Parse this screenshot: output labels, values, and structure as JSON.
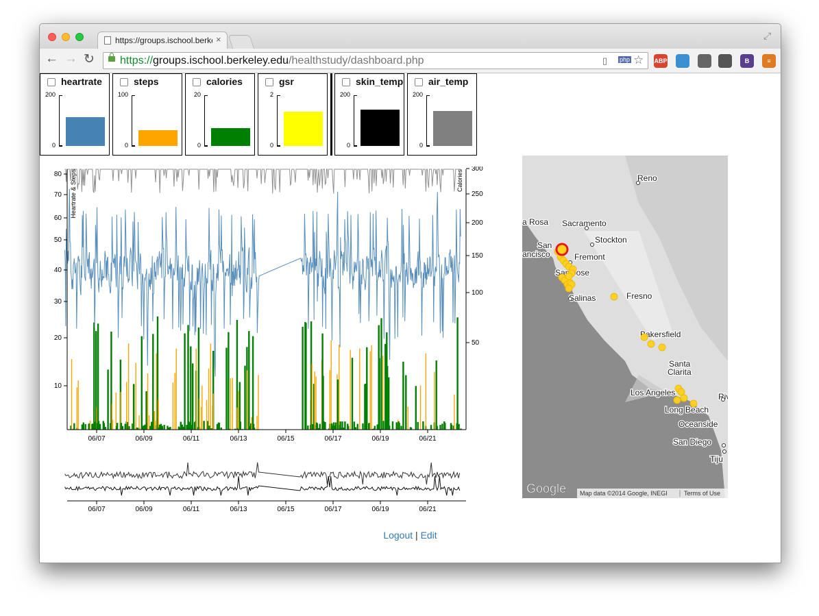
{
  "browser": {
    "tab_title": "https://groups.ischool.berkeley.edu",
    "tab_close": "×",
    "url": {
      "scheme": "https://",
      "host": "groups.ischool.berkeley.edu",
      "path": "/healthstudy/dashboard.php"
    },
    "nav": {
      "back": "←",
      "forward": "→",
      "reload": "↻"
    },
    "extensions": [
      {
        "label": "ABP",
        "color": "#d9432f"
      },
      {
        "label": "",
        "color": "#3b8fd3"
      },
      {
        "label": "",
        "color": "#666666"
      },
      {
        "label": "",
        "color": "#555555"
      },
      {
        "label": "B",
        "color": "#5b3f8f"
      },
      {
        "label": "≡",
        "color": "#e07b22"
      }
    ],
    "php_badge": "php"
  },
  "sensors": [
    {
      "name": "heartrate",
      "max": "200",
      "min": "0",
      "value": 114,
      "max_value": 200,
      "color": "#4682b4"
    },
    {
      "name": "steps",
      "max": "100",
      "min": "0",
      "value": 31,
      "max_value": 100,
      "color": "#ffa500"
    },
    {
      "name": "calories",
      "max": "20",
      "min": "0",
      "value": 7,
      "max_value": 20,
      "color": "#008000"
    },
    {
      "name": "gsr",
      "max": "2",
      "min": "0",
      "value": 1.35,
      "max_value": 2,
      "color": "#ffff00"
    },
    {
      "name": "skin_temp",
      "max": "200",
      "min": "0",
      "value": 143,
      "max_value": 200,
      "color": "#000000"
    },
    {
      "name": "air_temp",
      "max": "200",
      "min": "0",
      "value": 139,
      "max_value": 200,
      "color": "#808080"
    }
  ],
  "chart_data": {
    "type": "line",
    "ylabel": "Heartrate & Steps",
    "y2label": "Calories",
    "yticks": [
      "10",
      "20",
      "30",
      "40",
      "50",
      "60",
      "70",
      "80"
    ],
    "yticks_values": [
      10,
      20,
      30,
      40,
      50,
      60,
      70,
      80
    ],
    "y2ticks": [
      "50",
      "100",
      "150",
      "200",
      "250",
      "300"
    ],
    "y2ticks_values": [
      50,
      100,
      150,
      200,
      250,
      300
    ],
    "xticks": [
      "06/07",
      "06/09",
      "06/11",
      "06/13",
      "06/15",
      "06/17",
      "06/19",
      "06/21"
    ],
    "xlim": [
      "06/06",
      "06/22"
    ],
    "series": [
      {
        "color": "#4682b4"
      },
      {
        "color": "#ffa500"
      },
      {
        "color": "#008000"
      },
      {
        "color": "#808080"
      }
    ],
    "context_xticks": [
      "06/07",
      "06/09",
      "06/11",
      "06/13",
      "06/15",
      "06/17",
      "06/19",
      "06/21"
    ]
  },
  "map": {
    "cities": [
      {
        "name": "Reno"
      },
      {
        "name": "Sacramento"
      },
      {
        "name": "Stockton"
      },
      {
        "name": "San"
      },
      {
        "name": "ancisco"
      },
      {
        "name": "Fremont"
      },
      {
        "name": "San Jose"
      },
      {
        "name": "Salinas"
      },
      {
        "name": "Fresno"
      },
      {
        "name": "Bakersfield"
      },
      {
        "name": "Santa"
      },
      {
        "name": "Clarita"
      },
      {
        "name": "Los Angeles"
      },
      {
        "name": "Long Beach"
      },
      {
        "name": "Oceanside"
      },
      {
        "name": "San Diego"
      },
      {
        "name": "Tiju"
      },
      {
        "name": "a Rosa"
      },
      {
        "name": "Riv"
      }
    ],
    "logo": "Google",
    "attribution": "Map data ©2014 Google, INEGI",
    "terms": "Terms of Use"
  },
  "footer": {
    "logout": "Logout",
    "separator": "|",
    "edit": "Edit"
  }
}
